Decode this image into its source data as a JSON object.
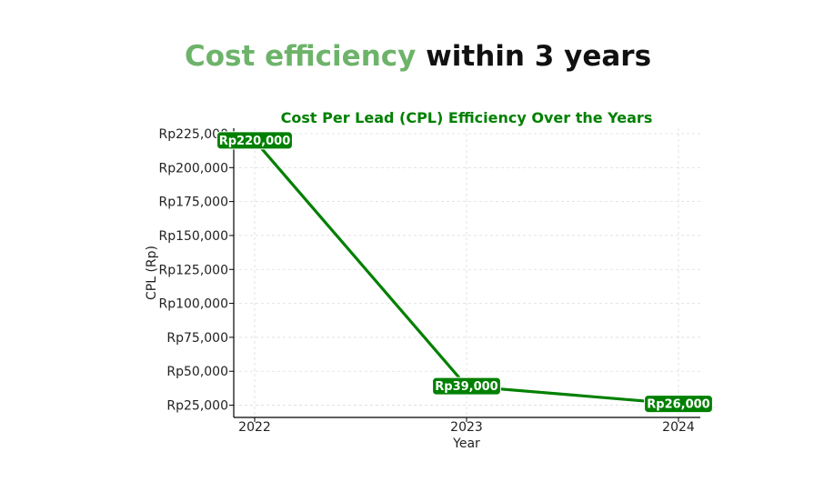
{
  "headline": {
    "accent_text": "Cost efficiency",
    "rest_text": " within 3 years",
    "accent_color": "#6db36a"
  },
  "chart_data": {
    "type": "line",
    "title": "Cost Per Lead (CPL) Efficiency Over the Years",
    "title_color": "#008000",
    "xlabel": "Year",
    "ylabel": "CPL (Rp)",
    "categories": [
      "2022",
      "2023",
      "2024"
    ],
    "series": [
      {
        "name": "CPL",
        "color": "#008000",
        "values": [
          220000,
          39000,
          26000
        ],
        "labels": [
          "Rp220,000",
          "Rp39,000",
          "Rp26,000"
        ]
      }
    ],
    "yticks": [
      25000,
      50000,
      75000,
      100000,
      125000,
      150000,
      175000,
      200000,
      225000
    ],
    "ytick_labels": [
      "Rp25,000",
      "Rp50,000",
      "Rp75,000",
      "Rp100,000",
      "Rp125,000",
      "Rp150,000",
      "Rp175,000",
      "Rp200,000",
      "Rp225,000"
    ],
    "ylim": [
      16000,
      229000
    ],
    "grid": true,
    "grid_style": "dashed"
  }
}
